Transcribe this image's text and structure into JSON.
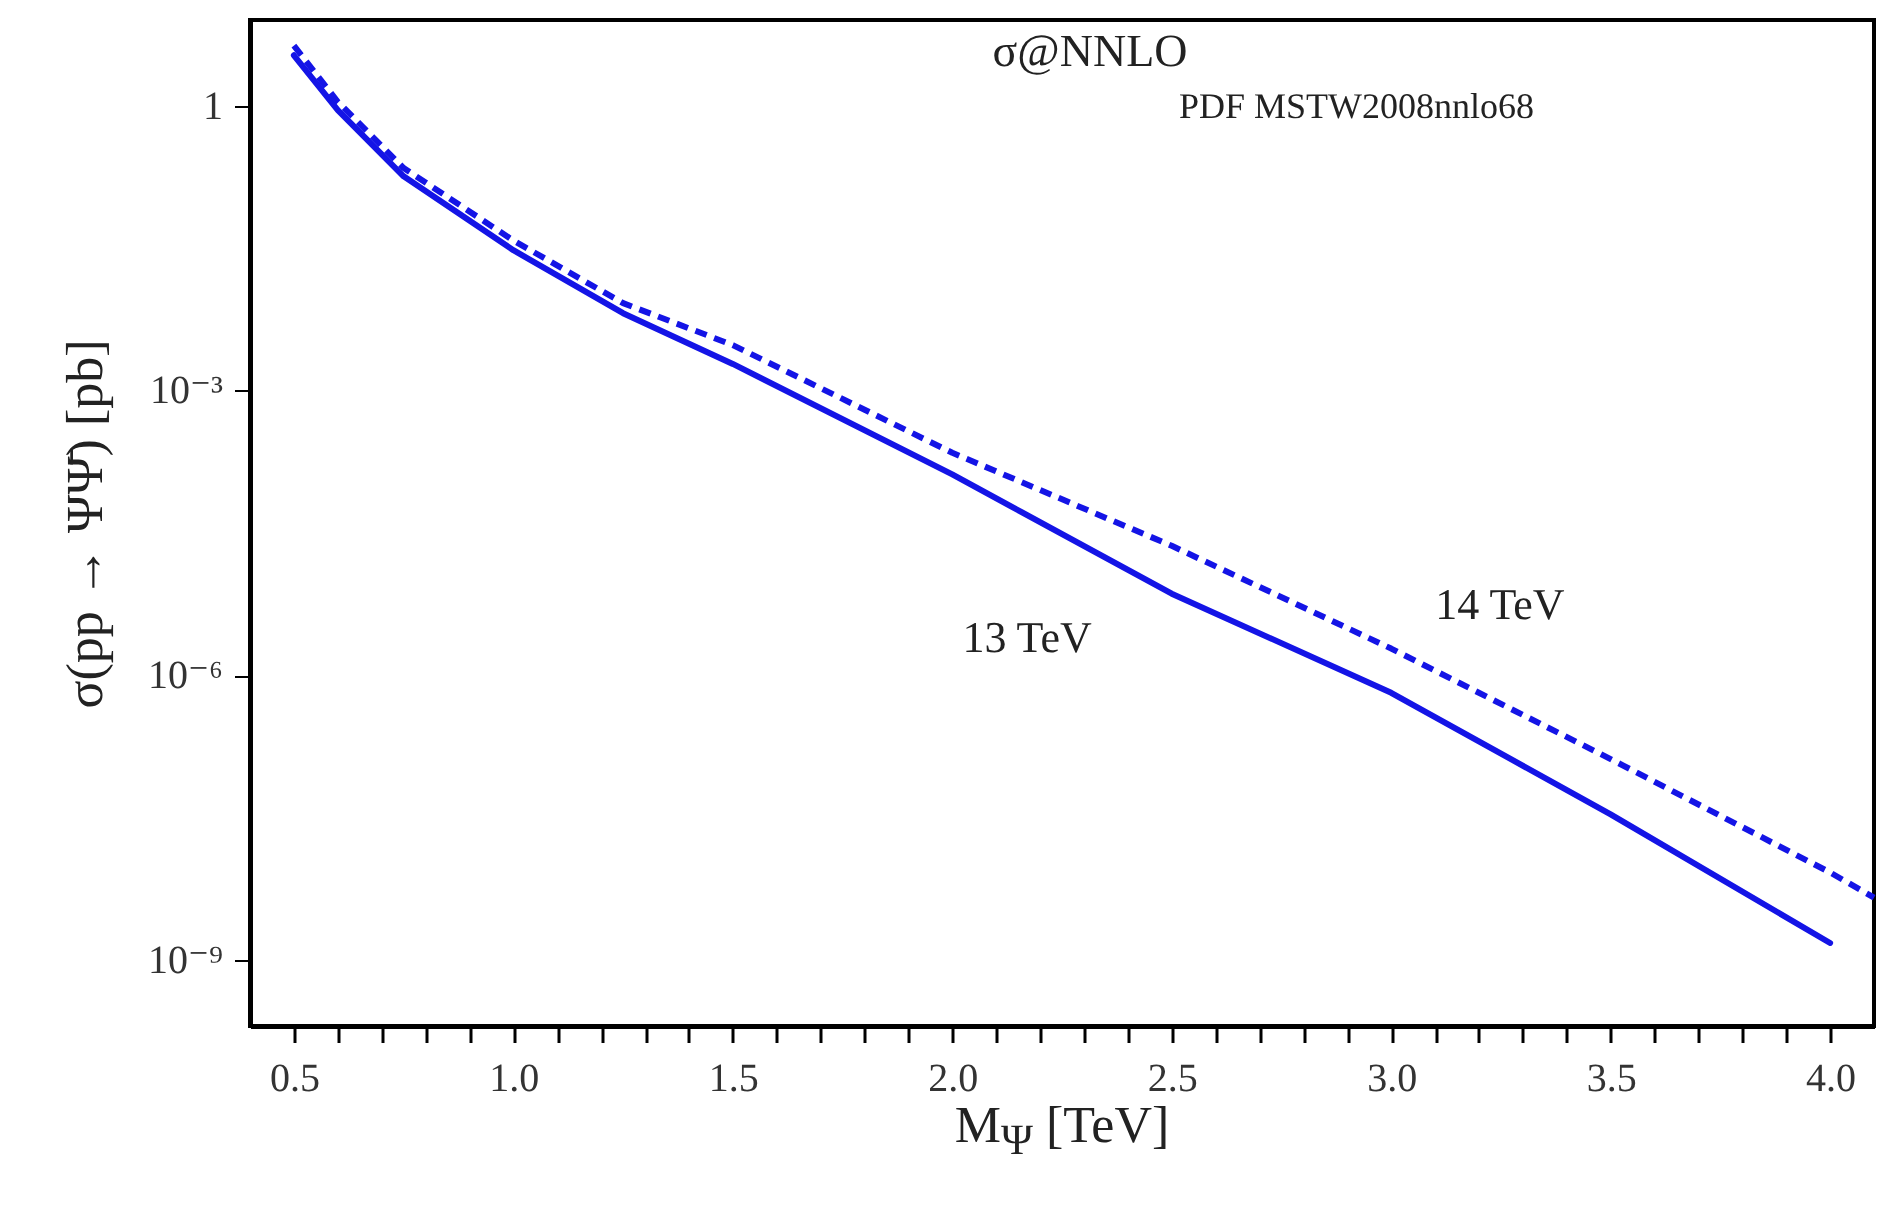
{
  "chart_data": {
    "type": "line",
    "title": "σ@NNLO",
    "subtitle": "PDF MSTW2008nnlo68",
    "xlabel": "M$_{Ψ}$ [TeV]",
    "ylabel": "σ(pp → ΨΨ̄) [pb]",
    "log": "y",
    "grid": false,
    "marker": "none",
    "xlim": [
      0.4,
      4.1
    ],
    "ylim": [
      2e-10,
      8
    ],
    "xticks": [
      0.5,
      {
        "value": 0.6,
        "label": null
      },
      {
        "value": 0.7,
        "label": null
      },
      {
        "value": 0.8,
        "label": null
      },
      {
        "value": 0.9,
        "label": null
      },
      "1.0",
      {
        "value": 1.1,
        "label": null
      },
      {
        "value": 1.2,
        "label": null
      },
      {
        "value": 1.3,
        "label": null
      },
      {
        "value": 1.4,
        "label": null
      },
      1.5,
      {
        "value": 1.6,
        "label": null
      },
      {
        "value": 1.7,
        "label": null
      },
      {
        "value": 1.8,
        "label": null
      },
      {
        "value": 1.9,
        "label": null
      },
      {
        "value": 2,
        "label": "2.0"
      },
      {
        "value": 2.1,
        "label": null
      },
      {
        "value": 2.2,
        "label": null
      },
      {
        "value": 2.3,
        "label": null
      },
      {
        "value": 2.4,
        "label": null
      },
      2.5,
      {
        "value": 2.6,
        "label": null
      },
      {
        "value": 2.7,
        "label": null
      },
      {
        "value": 2.8,
        "label": null
      },
      {
        "value": 2.9,
        "label": null
      },
      {
        "value": 3,
        "label": "3.0"
      },
      {
        "value": 3.1,
        "label": null
      },
      {
        "value": 3.2,
        "label": null
      },
      {
        "value": 3.3,
        "label": null
      },
      {
        "value": 3.4,
        "label": null
      },
      3.5,
      {
        "value": 3.6,
        "label": null
      },
      {
        "value": 3.7,
        "label": null
      },
      {
        "value": 3.8,
        "label": null
      },
      {
        "value": 3.9,
        "label": null
      },
      {
        "value": 4,
        "label": "4.0"
      }
    ],
    "yticks": [
      1,
      {
        "value": 0.001,
        "label": "10⁻³"
      },
      {
        "value": 1e-06,
        "label": "10⁻⁶"
      },
      {
        "value": 1e-09,
        "label": "10⁻⁹"
      }
    ],
    "series": [
      {
        "name": "13 TeV",
        "color": "#1414e6",
        "line_style": "solid",
        "x": [
          0.5,
          0.6,
          0.75,
          1.0,
          1.25,
          1.5,
          2.0,
          2.5,
          3.0,
          3.5,
          4.0
        ],
        "values": [
          3.4,
          0.9,
          0.18,
          0.03,
          0.0065,
          0.0019,
          0.00013,
          7.2e-06,
          6.5e-07,
          3.4e-08,
          1.5e-09
        ]
      },
      {
        "name": "14 TeV",
        "color": "#1414e6",
        "line_style": "dashed",
        "x": [
          0.5,
          0.6,
          0.75,
          1.0,
          1.25,
          1.5,
          2.0,
          2.5,
          3.0,
          3.5,
          4.0,
          4.1
        ],
        "values": [
          4.3,
          1.1,
          0.22,
          0.038,
          0.0083,
          0.003,
          0.00022,
          2.3e-05,
          1.9e-06,
          1.3e-07,
          8.3e-09,
          4.5e-09
        ]
      }
    ]
  }
}
